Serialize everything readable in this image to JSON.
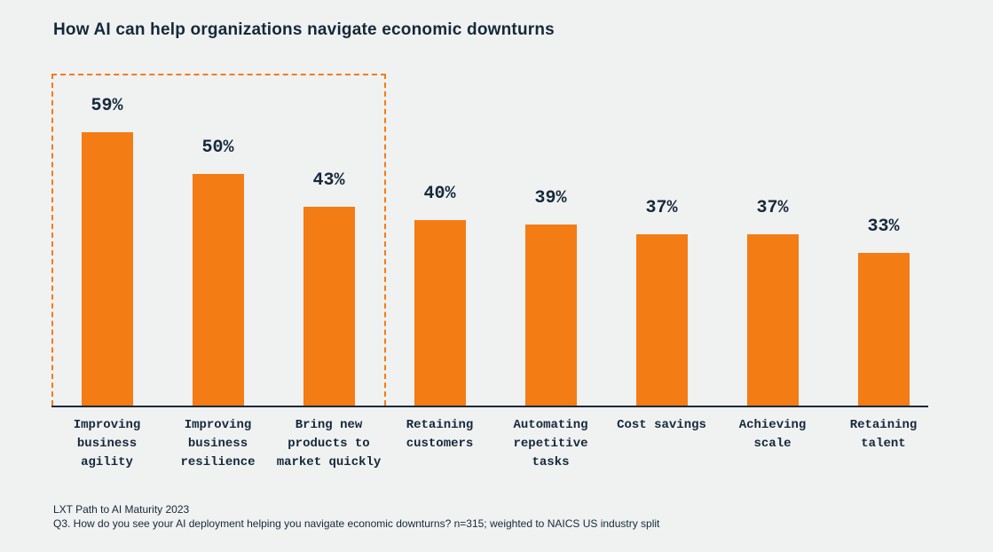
{
  "page": {
    "background_color": "#f0f1f1",
    "accent_color": "#f47c14",
    "text_color": "#14293b"
  },
  "title": "How AI can help organizations navigate economic downturns",
  "footer": {
    "line1": "LXT Path to AI Maturity 2023",
    "line2": "Q3. How do you see your AI deployment helping you navigate economic downturns? n=315; weighted to NAICS US industry split"
  },
  "chart_data": {
    "type": "bar",
    "title": "How AI can help organizations navigate economic downturns",
    "categories": [
      "Improving business agility",
      "Improving business resilience",
      "Bring new products to market quickly",
      "Retaining customers",
      "Automating repetitive tasks",
      "Cost savings",
      "Achieving scale",
      "Retaining talent"
    ],
    "category_lines": [
      [
        "Improving",
        "business",
        "agility"
      ],
      [
        "Improving",
        "business",
        "resilience"
      ],
      [
        "Bring new",
        "products to",
        "market quickly"
      ],
      [
        "Retaining",
        "customers"
      ],
      [
        "Automating",
        "repetitive",
        "tasks"
      ],
      [
        "Cost savings"
      ],
      [
        "Achieving",
        "scale"
      ],
      [
        "Retaining",
        "talent"
      ]
    ],
    "values": [
      59,
      50,
      43,
      40,
      39,
      37,
      37,
      33
    ],
    "value_labels": [
      "59%",
      "50%",
      "43%",
      "40%",
      "39%",
      "37%",
      "37%",
      "33%"
    ],
    "unit": "%",
    "bar_color": "#f47c14",
    "ylim": [
      0,
      59
    ],
    "grid": false,
    "legend": false,
    "highlight": {
      "style": "dashed-border-box",
      "color": "#f47c14",
      "covers_categories": [
        "Improving business agility",
        "Improving business resilience",
        "Bring new products to market quickly"
      ]
    }
  }
}
